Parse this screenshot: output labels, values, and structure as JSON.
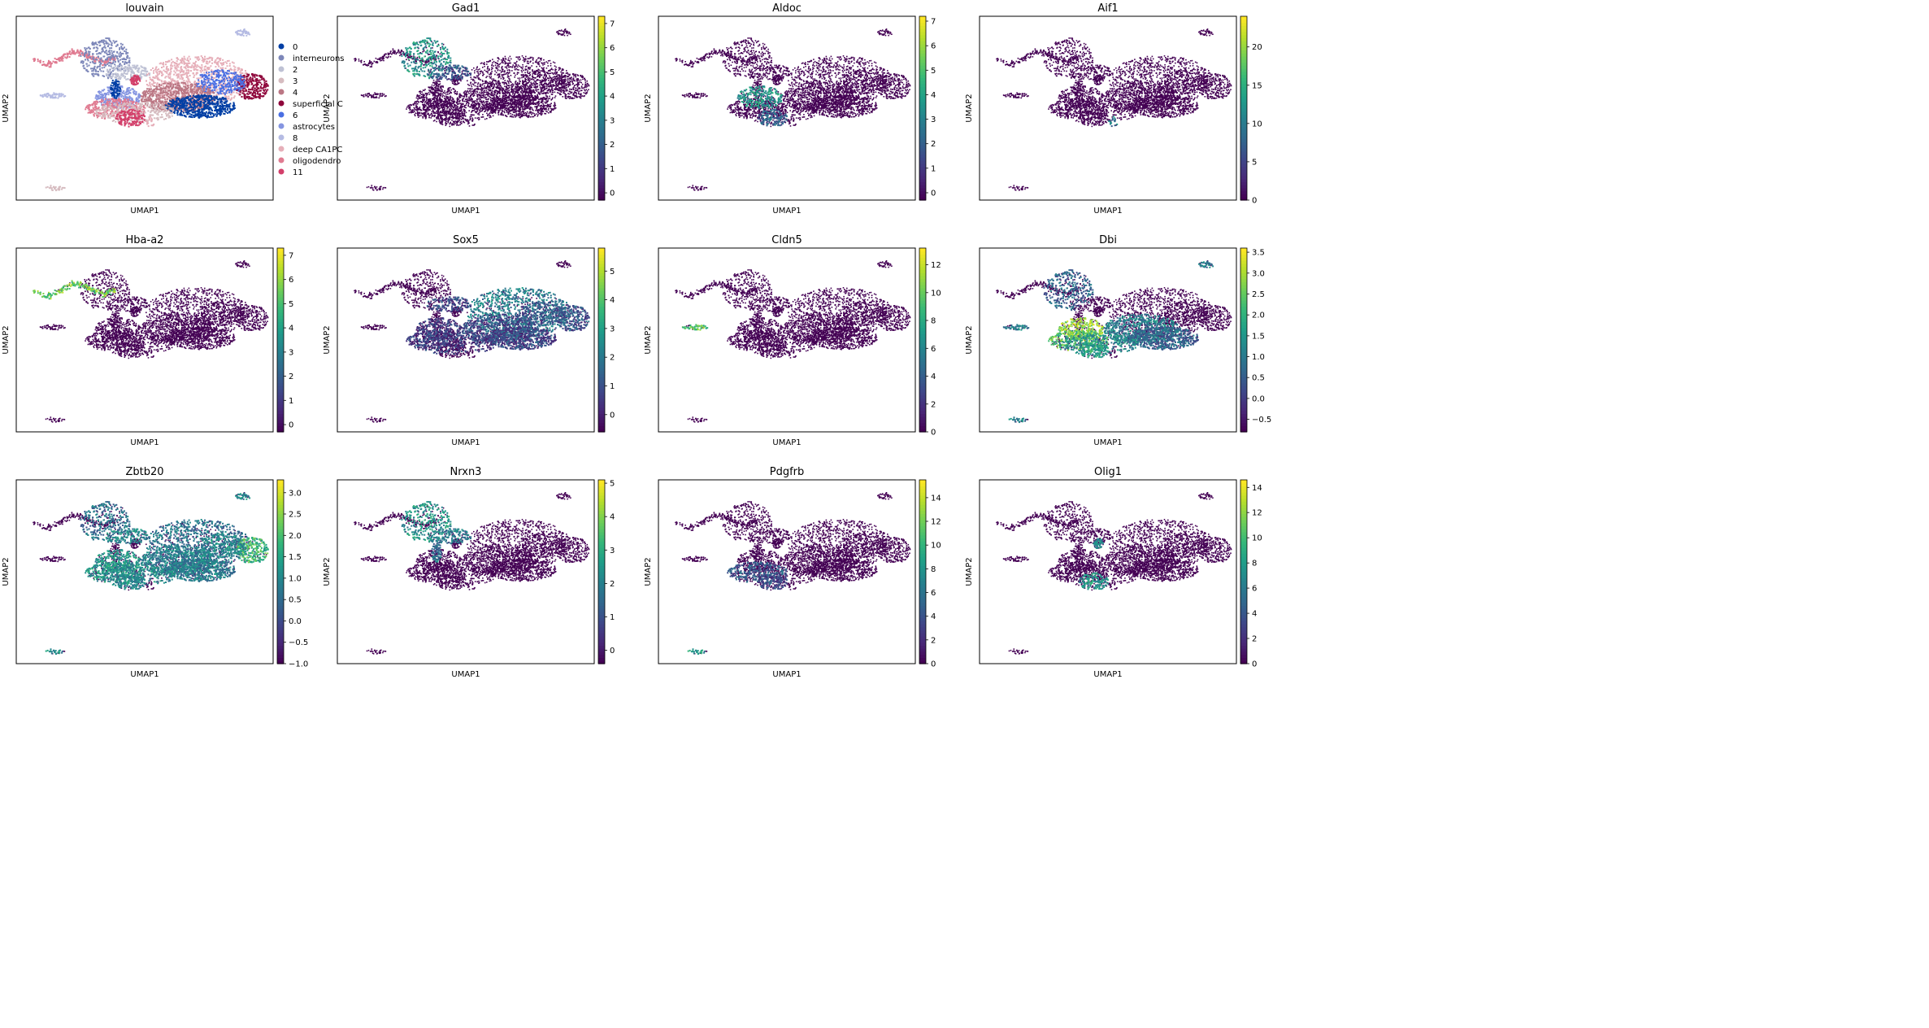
{
  "chart_data": [
    {
      "type": "scatter",
      "title": "louvain",
      "xlabel": "UMAP1",
      "ylabel": "UMAP2",
      "legend": {
        "placement": "right",
        "entries": [
          {
            "label": "0",
            "color": "#023fa5"
          },
          {
            "label": "interneurons",
            "color": "#7d87b9"
          },
          {
            "label": "2",
            "color": "#bec1d4"
          },
          {
            "label": "3",
            "color": "#d6bcc0"
          },
          {
            "label": "4",
            "color": "#bb7784"
          },
          {
            "label": "superficial C",
            "color": "#8e063b"
          },
          {
            "label": "6",
            "color": "#4a6fe3"
          },
          {
            "label": "astrocytes",
            "color": "#8595e1"
          },
          {
            "label": "8",
            "color": "#b5bbe3"
          },
          {
            "label": "deep CA1PC",
            "color": "#e6afb9"
          },
          {
            "label": "oligodendro",
            "color": "#e07b91"
          },
          {
            "label": "11",
            "color": "#d33f6a"
          }
        ]
      }
    },
    {
      "type": "scatter",
      "title": "Gad1",
      "xlabel": "UMAP1",
      "ylabel": "UMAP2",
      "colorbar": {
        "ticks": [
          "0",
          "1",
          "2",
          "3",
          "4",
          "5",
          "6",
          "7"
        ],
        "min": -0.3,
        "max": 7.3
      }
    },
    {
      "type": "scatter",
      "title": "Aldoc",
      "xlabel": "UMAP1",
      "ylabel": "UMAP2",
      "colorbar": {
        "ticks": [
          "0",
          "1",
          "2",
          "3",
          "4",
          "5",
          "6",
          "7"
        ],
        "min": -0.3,
        "max": 7.2
      }
    },
    {
      "type": "scatter",
      "title": "Aif1",
      "xlabel": "UMAP1",
      "ylabel": "UMAP2",
      "colorbar": {
        "ticks": [
          "0",
          "5",
          "10",
          "15",
          "20"
        ],
        "min": 0,
        "max": 24
      }
    },
    {
      "type": "scatter",
      "title": "Hba-a2",
      "xlabel": "UMAP1",
      "ylabel": "UMAP2",
      "colorbar": {
        "ticks": [
          "0",
          "1",
          "2",
          "3",
          "4",
          "5",
          "6",
          "7"
        ],
        "min": -0.3,
        "max": 7.3
      }
    },
    {
      "type": "scatter",
      "title": "Sox5",
      "xlabel": "UMAP1",
      "ylabel": "UMAP2",
      "colorbar": {
        "ticks": [
          "0",
          "1",
          "2",
          "3",
          "4",
          "5"
        ],
        "min": -0.6,
        "max": 5.8
      }
    },
    {
      "type": "scatter",
      "title": "Cldn5",
      "xlabel": "UMAP1",
      "ylabel": "UMAP2",
      "colorbar": {
        "ticks": [
          "0",
          "2",
          "4",
          "6",
          "8",
          "10",
          "12"
        ],
        "min": 0,
        "max": 13.2
      }
    },
    {
      "type": "scatter",
      "title": "Dbi",
      "xlabel": "UMAP1",
      "ylabel": "UMAP2",
      "colorbar": {
        "ticks": [
          "−0.5",
          "0.0",
          "0.5",
          "1.0",
          "1.5",
          "2.0",
          "2.5",
          "3.0",
          "3.5"
        ],
        "min": -0.8,
        "max": 3.6
      }
    },
    {
      "type": "scatter",
      "title": "Zbtb20",
      "xlabel": "UMAP1",
      "ylabel": "UMAP2",
      "colorbar": {
        "ticks": [
          "−1.0",
          "−0.5",
          "0.0",
          "0.5",
          "1.0",
          "1.5",
          "2.0",
          "2.5",
          "3.0"
        ],
        "min": -1.0,
        "max": 3.3
      }
    },
    {
      "type": "scatter",
      "title": "Nrxn3",
      "xlabel": "UMAP1",
      "ylabel": "UMAP2",
      "colorbar": {
        "ticks": [
          "0",
          "1",
          "2",
          "3",
          "4",
          "5"
        ],
        "min": -0.4,
        "max": 5.1
      }
    },
    {
      "type": "scatter",
      "title": "Pdgfrb",
      "xlabel": "UMAP1",
      "ylabel": "UMAP2",
      "colorbar": {
        "ticks": [
          "0",
          "2",
          "4",
          "6",
          "8",
          "10",
          "12",
          "14"
        ],
        "min": 0,
        "max": 15.5
      }
    },
    {
      "type": "scatter",
      "title": "Olig1",
      "xlabel": "UMAP1",
      "ylabel": "UMAP2",
      "colorbar": {
        "ticks": [
          "0",
          "2",
          "4",
          "6",
          "8",
          "10",
          "12",
          "14"
        ],
        "min": 0,
        "max": 14.6
      }
    }
  ]
}
